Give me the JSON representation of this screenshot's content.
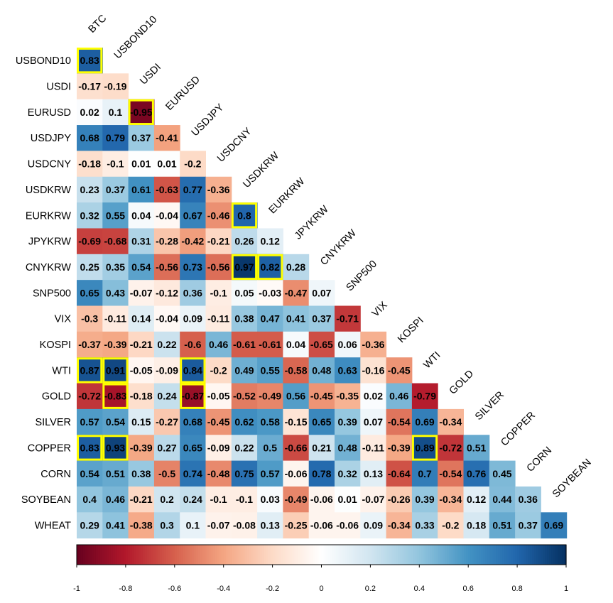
{
  "chart_data": {
    "type": "heatmap",
    "title": "",
    "row_labels": [
      "USBOND10",
      "USDI",
      "EURUSD",
      "USDJPY",
      "USDCNY",
      "USDKRW",
      "EURKRW",
      "JPYKRW",
      "CNYKRW",
      "SNP500",
      "VIX",
      "KOSPI",
      "WTI",
      "GOLD",
      "SILVER",
      "COPPER",
      "CORN",
      "SOYBEAN",
      "WHEAT"
    ],
    "col_labels": [
      "BTC",
      "USBOND10",
      "USDI",
      "EURUSD",
      "USDJPY",
      "USDCNY",
      "USDKRW",
      "EURKRW",
      "JPYKRW",
      "CNYKRW",
      "SNP500",
      "VIX",
      "KOSPI",
      "WTI",
      "GOLD",
      "SILVER",
      "COPPER",
      "CORN",
      "SOYBEAN"
    ],
    "values": [
      [
        0.83
      ],
      [
        -0.17,
        -0.19
      ],
      [
        0.02,
        0.1,
        -0.95
      ],
      [
        0.68,
        0.79,
        0.37,
        -0.41
      ],
      [
        -0.18,
        -0.1,
        0.01,
        0.01,
        -0.2
      ],
      [
        0.23,
        0.37,
        0.61,
        -0.63,
        0.77,
        -0.36
      ],
      [
        0.32,
        0.55,
        0.04,
        -0.04,
        0.67,
        -0.46,
        0.8
      ],
      [
        -0.69,
        -0.68,
        0.31,
        -0.28,
        -0.42,
        -0.21,
        0.26,
        0.12
      ],
      [
        0.25,
        0.35,
        0.54,
        -0.56,
        0.73,
        -0.56,
        0.97,
        0.82,
        0.28
      ],
      [
        0.65,
        0.43,
        -0.07,
        -0.12,
        0.36,
        -0.1,
        0.05,
        -0.03,
        -0.47,
        0.07
      ],
      [
        -0.3,
        -0.11,
        0.14,
        -0.04,
        0.09,
        -0.11,
        0.38,
        0.47,
        0.41,
        0.37,
        -0.71
      ],
      [
        -0.37,
        -0.39,
        -0.21,
        0.22,
        -0.6,
        0.46,
        -0.61,
        -0.61,
        0.04,
        -0.65,
        0.06,
        -0.36
      ],
      [
        0.87,
        0.91,
        -0.05,
        -0.09,
        0.84,
        -0.2,
        0.49,
        0.55,
        -0.58,
        0.48,
        0.63,
        -0.16,
        -0.45
      ],
      [
        -0.72,
        -0.83,
        -0.18,
        0.24,
        -0.87,
        -0.05,
        -0.52,
        -0.49,
        0.56,
        -0.45,
        -0.35,
        0.02,
        0.46,
        -0.79
      ],
      [
        0.57,
        0.54,
        0.15,
        -0.27,
        0.68,
        -0.45,
        0.62,
        0.58,
        -0.15,
        0.65,
        0.39,
        0.07,
        -0.54,
        0.69,
        -0.34
      ],
      [
        0.83,
        0.93,
        -0.39,
        0.27,
        0.65,
        -0.09,
        0.22,
        0.5,
        -0.66,
        0.21,
        0.48,
        -0.11,
        -0.39,
        0.89,
        -0.72,
        0.51
      ],
      [
        0.54,
        0.51,
        0.38,
        -0.5,
        0.74,
        -0.48,
        0.75,
        0.57,
        -0.06,
        0.78,
        0.32,
        0.13,
        -0.64,
        0.7,
        -0.54,
        0.76,
        0.45
      ],
      [
        0.4,
        0.46,
        -0.21,
        0.2,
        0.24,
        -0.1,
        -0.1,
        0.03,
        -0.49,
        -0.06,
        0.01,
        -0.07,
        -0.26,
        0.39,
        -0.34,
        0.12,
        0.44,
        0.36
      ],
      [
        0.29,
        0.41,
        -0.38,
        0.3,
        0.1,
        -0.07,
        -0.08,
        0.13,
        -0.25,
        -0.06,
        -0.06,
        0.09,
        -0.34,
        0.33,
        -0.2,
        0.18,
        0.51,
        0.37,
        0.69
      ]
    ],
    "highlighted": [
      "USBOND10|BTC",
      "EURUSD|USDI",
      "EURKRW|USDKRW",
      "CNYKRW|USDKRW",
      "CNYKRW|EURKRW",
      "WTI|BTC",
      "WTI|USBOND10",
      "WTI|USDJPY",
      "GOLD|USBOND10",
      "GOLD|USDJPY",
      "COPPER|BTC",
      "COPPER|USBOND10",
      "COPPER|WTI"
    ],
    "highlight_color": "#ffff00",
    "colorscale": {
      "min": -1,
      "max": 1,
      "stops": [
        "#67001f",
        "#b2182b",
        "#d6604d",
        "#f4a582",
        "#fddbc7",
        "#ffffff",
        "#d1e5f0",
        "#92c5de",
        "#4393c3",
        "#2166ac",
        "#053061"
      ],
      "ticks": [
        "-1",
        "-0.8",
        "-0.6",
        "-0.4",
        "-0.2",
        "0",
        "0.2",
        "0.4",
        "0.6",
        "0.8",
        "1"
      ]
    }
  }
}
